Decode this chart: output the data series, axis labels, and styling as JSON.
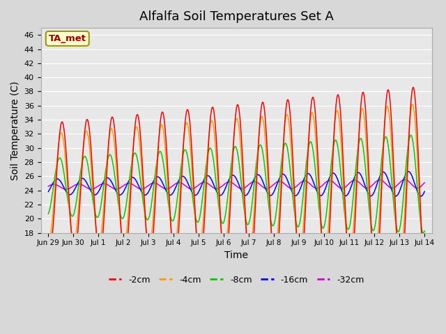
{
  "title": "Alfalfa Soil Temperatures Set A",
  "xlabel": "Time",
  "ylabel": "Soil Temperature (C)",
  "annotation": "TA_met",
  "ylim": [
    18,
    47
  ],
  "yticks": [
    18,
    20,
    22,
    24,
    26,
    28,
    30,
    32,
    34,
    36,
    38,
    40,
    42,
    44,
    46
  ],
  "x_tick_labels": [
    "Jun 29",
    "Jun 30",
    "Jul 1",
    "Jul 2",
    "Jul 3",
    "Jul 4",
    "Jul 5",
    "Jul 6",
    "Jul 7",
    "Jul 8",
    "Jul 9",
    "Jul 10",
    "Jul 11",
    "Jul 12",
    "Jul 13",
    "Jul 14"
  ],
  "colors": {
    "-2cm": "#ff0000",
    "-4cm": "#ff9900",
    "-8cm": "#00cc00",
    "-16cm": "#0000ff",
    "-32cm": "#cc00cc"
  },
  "series_labels": [
    "-2cm",
    "-4cm",
    "-8cm",
    "-16cm",
    "-32cm"
  ],
  "title_fontsize": 13,
  "axis_fontsize": 10,
  "legend_fontsize": 9
}
